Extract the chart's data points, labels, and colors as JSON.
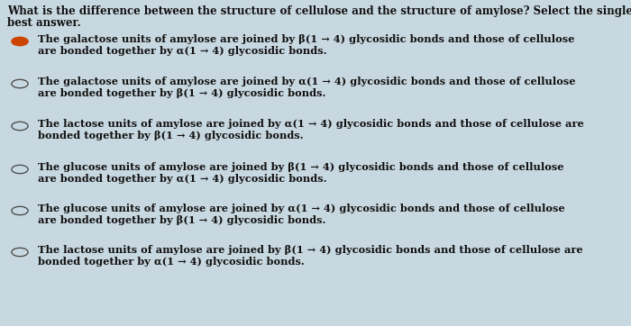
{
  "background_color": "#c8d8e0",
  "title_line1": "What is the difference between the structure of cellulose and the structure of amylose? Select the single",
  "title_line2": "best answer.",
  "options": [
    {
      "line1": "The galactose units of amylose are joined by β(1 → 4) glycosidic bonds and those of cellulose",
      "line2": "are bonded together by α(1 → 4) glycosidic bonds.",
      "selected": true
    },
    {
      "line1": "The galactose units of amylose are joined by α(1 → 4) glycosidic bonds and those of cellulose",
      "line2": "are bonded together by β(1 → 4) glycosidic bonds.",
      "selected": false
    },
    {
      "line1": "The lactose units of amylose are joined by α(1 → 4) glycosidic bonds and those of cellulose are",
      "line2": "bonded together by β(1 → 4) glycosidic bonds.",
      "selected": false
    },
    {
      "line1": "The glucose units of amylose are joined by β(1 → 4) glycosidic bonds and those of cellulose",
      "line2": "are bonded together by α(1 → 4) glycosidic bonds.",
      "selected": false
    },
    {
      "line1": "The glucose units of amylose are joined by α(1 → 4) glycosidic bonds and those of cellulose",
      "line2": "are bonded together by β(1 → 4) glycosidic bonds.",
      "selected": false
    },
    {
      "line1": "The lactose units of amylose are joined by β(1 → 4) glycosidic bonds and those of cellulose are",
      "line2": "bonded together by α(1 → 4) glycosidic bonds.",
      "selected": false
    }
  ],
  "title_fontsize": 8.5,
  "option_fontsize": 8.2,
  "text_color": "#111111",
  "selected_dot_color": "#cc4400",
  "unselected_ring_color": "#444444",
  "font_family": "DejaVu Serif"
}
